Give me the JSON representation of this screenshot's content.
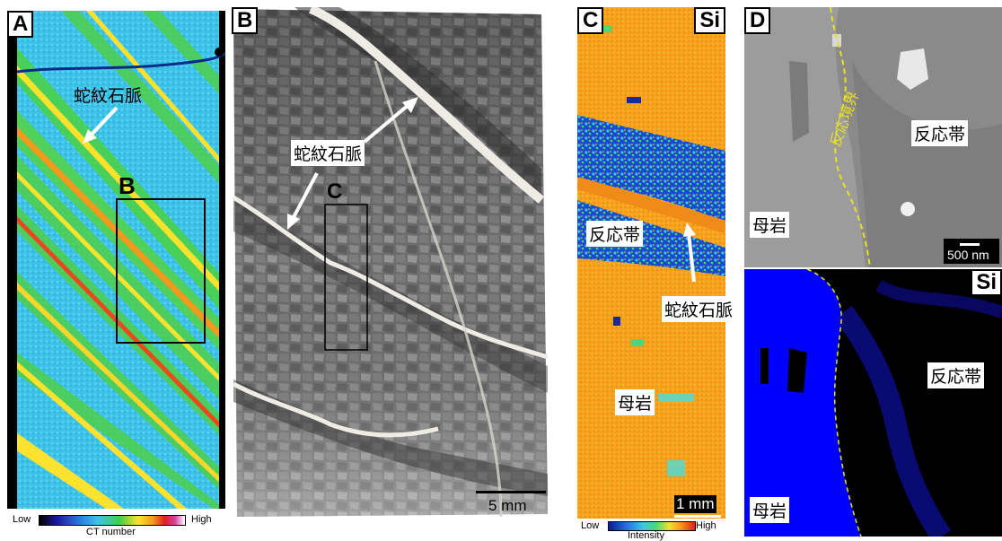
{
  "panels": {
    "a": {
      "tag": "A",
      "vein_label": "蛇紋石脈",
      "region_label": "B"
    },
    "b": {
      "tag": "B",
      "vein_label": "蛇紋石脈",
      "region_label": "C",
      "scale": "5 mm"
    },
    "c": {
      "tag": "C",
      "element": "Si",
      "zone_label": "反応帯",
      "vein_label": "蛇紋石脈",
      "host_label": "母岩",
      "scale": "1 mm"
    },
    "d": {
      "tag": "D",
      "element": "Si",
      "boundary_label": "反応境界",
      "zone_label": "反応帯",
      "host_label": "母岩",
      "zone_label_lower": "反応帯",
      "host_label_lower": "母岩",
      "scale": "500 nm"
    }
  },
  "colorbars": {
    "ct": {
      "low": "Low",
      "high": "High",
      "caption": "CT number"
    },
    "intensity": {
      "low": "Low",
      "high": "High",
      "caption": "Intensity"
    }
  }
}
